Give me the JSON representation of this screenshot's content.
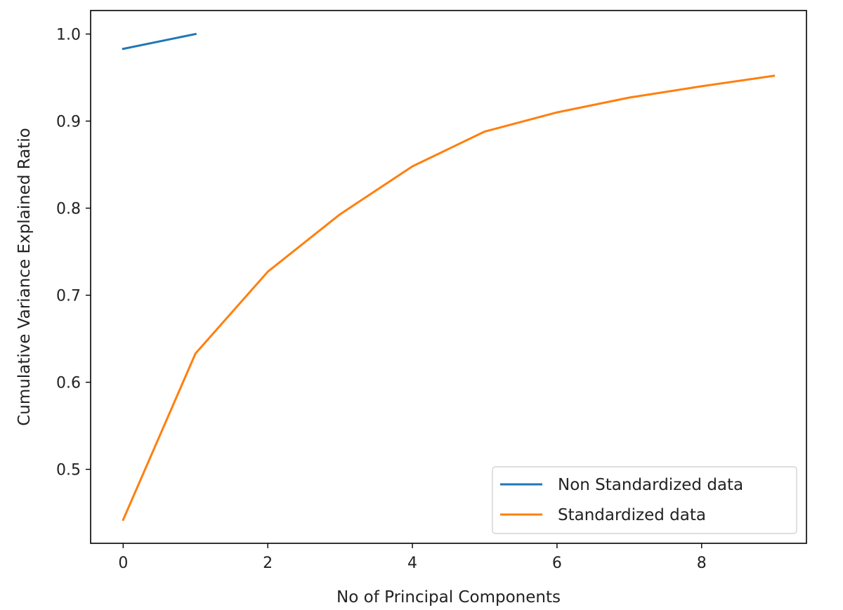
{
  "chart_data": {
    "type": "line",
    "title": "",
    "xlabel": "No of Principal Components",
    "ylabel": "Cumulative Variance Explained Ratio",
    "xlim": [
      -0.45,
      9.45
    ],
    "ylim": [
      0.415,
      1.027
    ],
    "xticks": [
      0,
      2,
      4,
      6,
      8
    ],
    "yticks": [
      0.5,
      0.6,
      0.7,
      0.8,
      0.9,
      1.0
    ],
    "xtick_labels": [
      "0",
      "2",
      "4",
      "6",
      "8"
    ],
    "ytick_labels": [
      "0.5",
      "0.6",
      "0.7",
      "0.8",
      "0.9",
      "1.0"
    ],
    "grid": false,
    "legend_position": "lower right",
    "series": [
      {
        "name": "Non Standardized data",
        "color": "#1f77b4",
        "x": [
          0,
          1
        ],
        "y": [
          0.983,
          1.0
        ]
      },
      {
        "name": "Standardized data",
        "color": "#ff7f0e",
        "x": [
          0,
          1,
          2,
          3,
          4,
          5,
          6,
          7,
          8,
          9
        ],
        "y": [
          0.442,
          0.633,
          0.727,
          0.793,
          0.848,
          0.888,
          0.91,
          0.927,
          0.94,
          0.952
        ]
      }
    ]
  }
}
